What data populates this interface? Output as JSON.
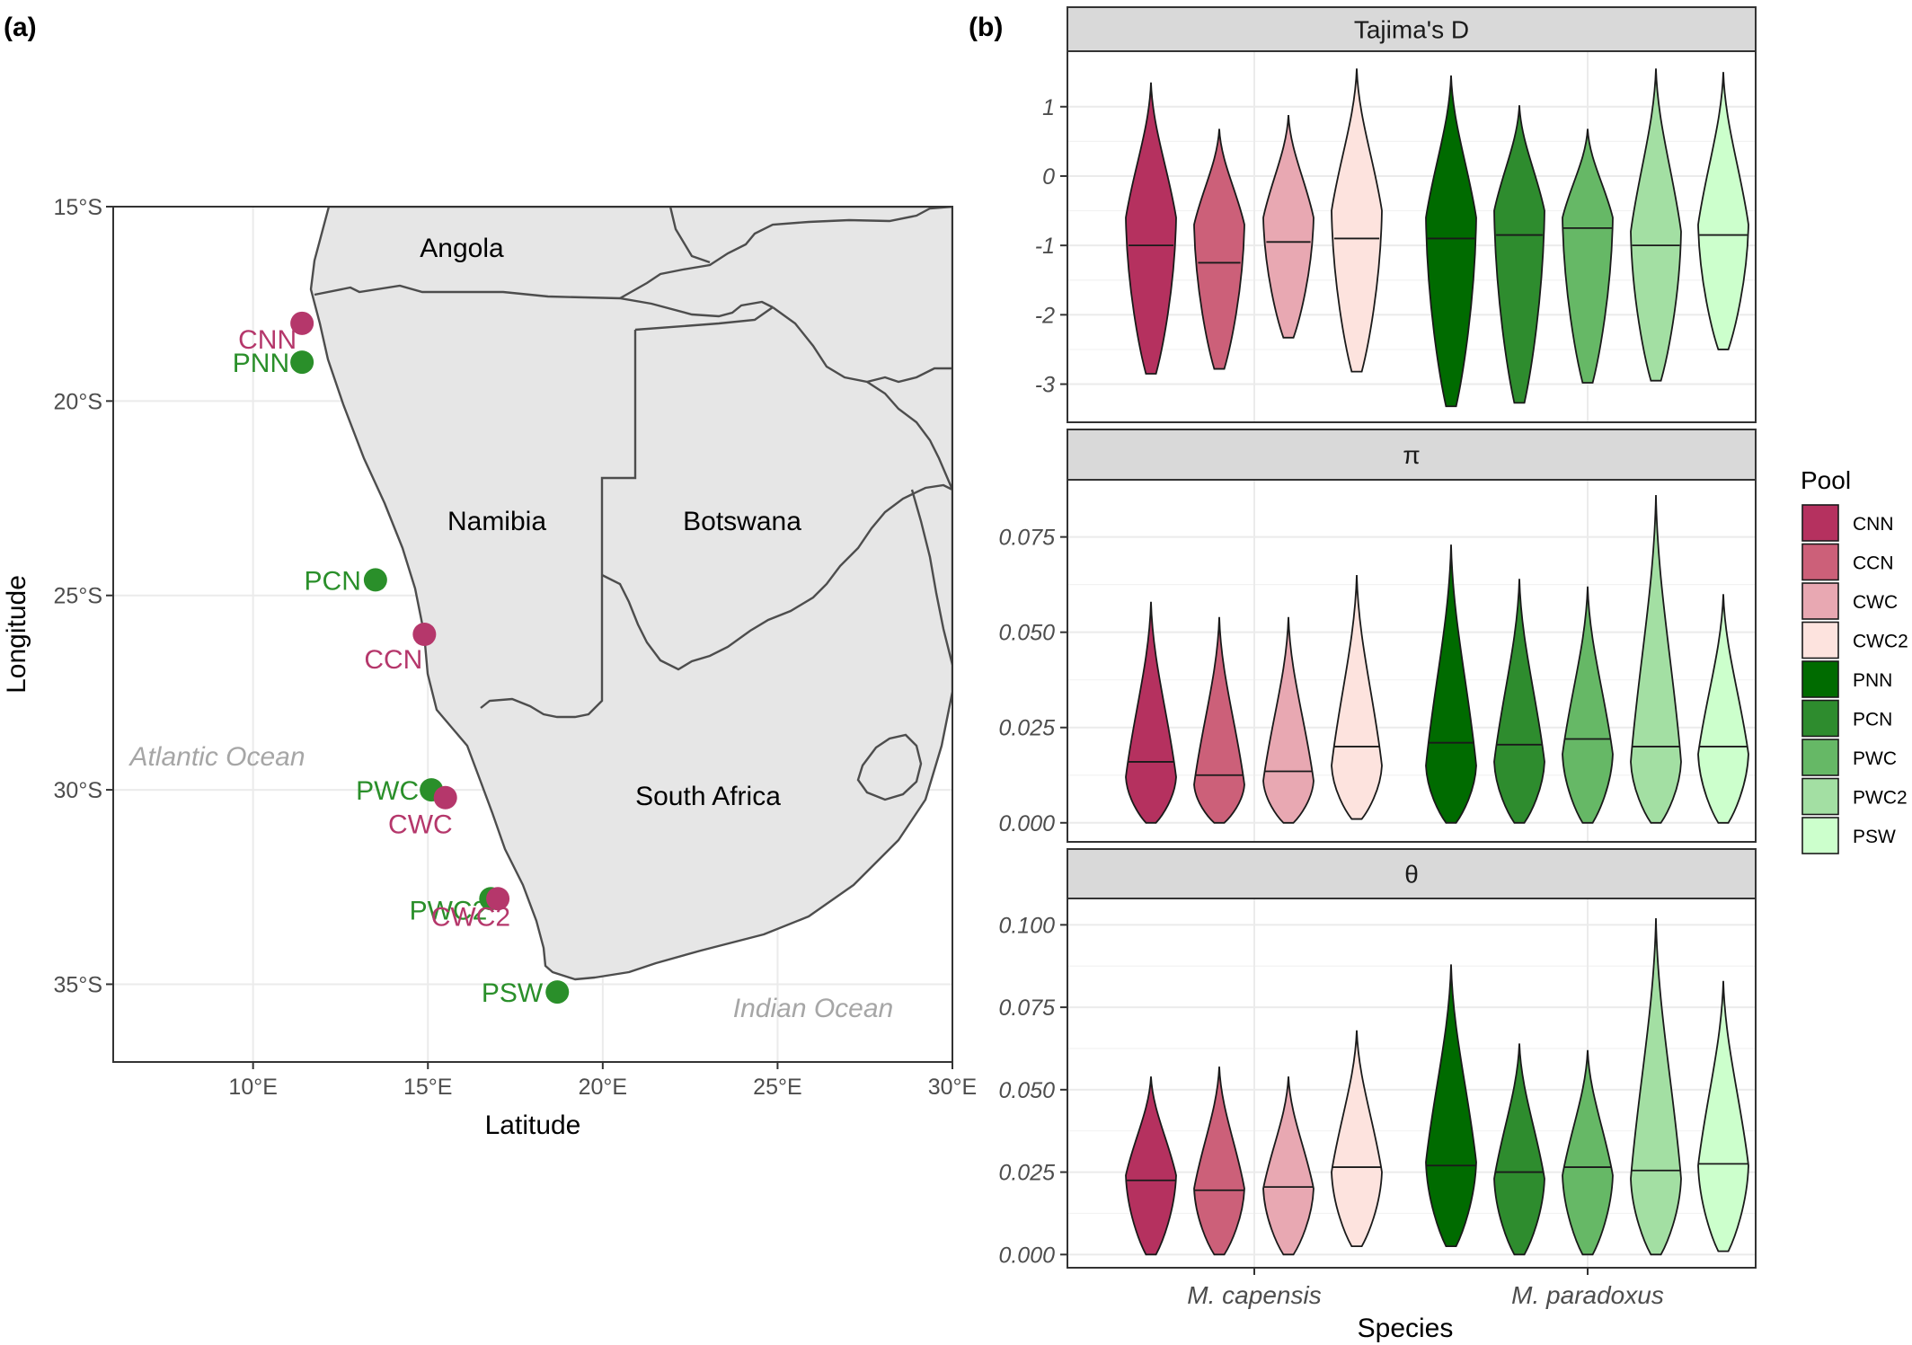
{
  "panel_labels": {
    "a": "(a)",
    "b": "(b)"
  },
  "map": {
    "xlabel": "Latitude",
    "ylabel": "Longitude",
    "x_ticks": [
      "10°E",
      "15°E",
      "20°E",
      "25°E",
      "30°E"
    ],
    "y_ticks": [
      "15°S",
      "20°S",
      "25°S",
      "30°S",
      "35°S"
    ],
    "countries": [
      "Angola",
      "Namibia",
      "Botswana",
      "South Africa"
    ],
    "oceans": [
      "Atlantic Ocean",
      "Indian Ocean"
    ],
    "colors": {
      "land": "#e6e6e6",
      "border": "#4d4d4d",
      "capensis": "#b5376b",
      "paradoxus": "#2a8f2a",
      "ocean_text": "#a6a6a6"
    }
  },
  "chart_data": [
    {
      "type": "scatter",
      "description_role": "sampling sites map",
      "xlabel": "Latitude",
      "ylabel": "Longitude",
      "xlim": [
        6,
        30
      ],
      "ylim": [
        -37,
        -15
      ],
      "grid": true,
      "points": [
        {
          "label": "CNN",
          "lon": 11.4,
          "lat": -18.0,
          "species": "capensis"
        },
        {
          "label": "PNN",
          "lon": 11.4,
          "lat": -19.0,
          "species": "paradoxus"
        },
        {
          "label": "PCN",
          "lon": 13.5,
          "lat": -24.6,
          "species": "paradoxus"
        },
        {
          "label": "CCN",
          "lon": 14.9,
          "lat": -26.0,
          "species": "capensis"
        },
        {
          "label": "PWC",
          "lon": 15.1,
          "lat": -30.0,
          "species": "paradoxus"
        },
        {
          "label": "CWC",
          "lon": 15.5,
          "lat": -30.2,
          "species": "capensis"
        },
        {
          "label": "PWC2",
          "lon": 16.8,
          "lat": -32.8,
          "species": "paradoxus"
        },
        {
          "label": "CWC2",
          "lon": 17.0,
          "lat": -32.8,
          "species": "capensis"
        },
        {
          "label": "PSW",
          "lon": 18.7,
          "lat": -35.2,
          "species": "paradoxus"
        }
      ]
    },
    {
      "type": "violin",
      "xlabel": "Species",
      "species_ticks": [
        "M. capensis",
        "M. paradoxus"
      ],
      "legend": {
        "title": "Pool",
        "position": "right",
        "entries": [
          {
            "name": "CNN",
            "color": "#b5315f"
          },
          {
            "name": "CCN",
            "color": "#cc6079"
          },
          {
            "name": "CWC",
            "color": "#e8a8b2"
          },
          {
            "name": "CWC2",
            "color": "#fde3de"
          },
          {
            "name": "PNN",
            "color": "#006b00"
          },
          {
            "name": "PCN",
            "color": "#2e8c2e"
          },
          {
            "name": "PWC",
            "color": "#66b866"
          },
          {
            "name": "PWC2",
            "color": "#a3dfa3"
          },
          {
            "name": "PSW",
            "color": "#ccffcc"
          }
        ]
      },
      "facets": [
        {
          "strip": "Tajima's D",
          "ylim": [
            -3.55,
            1.8
          ],
          "y_ticks": [
            1,
            0,
            -1,
            -2,
            -3
          ],
          "y_tick_labels": [
            "1",
            "0",
            "-1",
            "-2",
            "-3"
          ],
          "pools": [
            {
              "pool": "CNN",
              "min": -2.85,
              "max": 1.35,
              "median": -1.0,
              "mode": -0.6
            },
            {
              "pool": "CCN",
              "min": -2.78,
              "max": 0.68,
              "median": -1.25,
              "mode": -0.7
            },
            {
              "pool": "CWC",
              "min": -2.33,
              "max": 0.88,
              "median": -0.95,
              "mode": -0.6
            },
            {
              "pool": "CWC2",
              "min": -2.82,
              "max": 1.55,
              "median": -0.9,
              "mode": -0.5
            },
            {
              "pool": "PNN",
              "min": -3.32,
              "max": 1.45,
              "median": -0.9,
              "mode": -0.6
            },
            {
              "pool": "PCN",
              "min": -3.27,
              "max": 1.02,
              "median": -0.85,
              "mode": -0.5
            },
            {
              "pool": "PWC",
              "min": -2.98,
              "max": 0.68,
              "median": -0.75,
              "mode": -0.6
            },
            {
              "pool": "PWC2",
              "min": -2.95,
              "max": 1.55,
              "median": -1.0,
              "mode": -0.8
            },
            {
              "pool": "PSW",
              "min": -2.5,
              "max": 1.5,
              "median": -0.85,
              "mode": -0.7
            }
          ]
        },
        {
          "strip": "π",
          "ylim": [
            -0.005,
            0.09
          ],
          "y_ticks": [
            0.075,
            0.05,
            0.025,
            0.0
          ],
          "y_tick_labels": [
            "0.075",
            "0.050",
            "0.025",
            "0.000"
          ],
          "pools": [
            {
              "pool": "CNN",
              "min": 0.0,
              "max": 0.058,
              "median": 0.016,
              "mode": 0.012
            },
            {
              "pool": "CCN",
              "min": 0.0,
              "max": 0.054,
              "median": 0.0125,
              "mode": 0.01
            },
            {
              "pool": "CWC",
              "min": 0.0,
              "max": 0.054,
              "median": 0.0135,
              "mode": 0.011
            },
            {
              "pool": "CWC2",
              "min": 0.001,
              "max": 0.065,
              "median": 0.02,
              "mode": 0.015
            },
            {
              "pool": "PNN",
              "min": 0.0,
              "max": 0.073,
              "median": 0.021,
              "mode": 0.015
            },
            {
              "pool": "PCN",
              "min": 0.0,
              "max": 0.064,
              "median": 0.0205,
              "mode": 0.016
            },
            {
              "pool": "PWC",
              "min": 0.0,
              "max": 0.062,
              "median": 0.022,
              "mode": 0.018
            },
            {
              "pool": "PWC2",
              "min": 0.0,
              "max": 0.086,
              "median": 0.02,
              "mode": 0.016
            },
            {
              "pool": "PSW",
              "min": 0.0,
              "max": 0.06,
              "median": 0.02,
              "mode": 0.018
            }
          ]
        },
        {
          "strip": "θ",
          "ylim": [
            -0.004,
            0.108
          ],
          "y_ticks": [
            0.1,
            0.075,
            0.05,
            0.025,
            0.0
          ],
          "y_tick_labels": [
            "0.100",
            "0.075",
            "0.050",
            "0.025",
            "0.000"
          ],
          "pools": [
            {
              "pool": "CNN",
              "min": 0.0,
              "max": 0.054,
              "median": 0.0225,
              "mode": 0.024
            },
            {
              "pool": "CCN",
              "min": 0.0,
              "max": 0.057,
              "median": 0.0195,
              "mode": 0.02
            },
            {
              "pool": "CWC",
              "min": 0.0,
              "max": 0.054,
              "median": 0.0205,
              "mode": 0.02
            },
            {
              "pool": "CWC2",
              "min": 0.0025,
              "max": 0.068,
              "median": 0.0265,
              "mode": 0.025
            },
            {
              "pool": "PNN",
              "min": 0.0025,
              "max": 0.088,
              "median": 0.027,
              "mode": 0.028
            },
            {
              "pool": "PCN",
              "min": 0.0,
              "max": 0.064,
              "median": 0.025,
              "mode": 0.023
            },
            {
              "pool": "PWC",
              "min": 0.0,
              "max": 0.062,
              "median": 0.0265,
              "mode": 0.024
            },
            {
              "pool": "PWC2",
              "min": 0.0,
              "max": 0.102,
              "median": 0.0255,
              "mode": 0.023
            },
            {
              "pool": "PSW",
              "min": 0.001,
              "max": 0.083,
              "median": 0.0275,
              "mode": 0.027
            }
          ]
        }
      ]
    }
  ]
}
